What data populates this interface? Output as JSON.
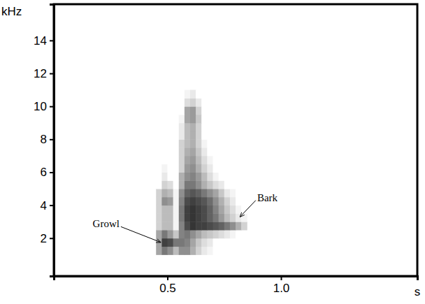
{
  "chart_data": {
    "type": "heatmap",
    "x_label": "s",
    "y_label": "kHz",
    "xlim": [
      0,
      1.6
    ],
    "xticks": [
      0.5,
      {
        "value": 1,
        "label": "1.0"
      }
    ],
    "ylim": [
      -0.3,
      16.2
    ],
    "yticks": [
      2,
      4,
      6,
      8,
      10,
      12,
      14
    ],
    "zlim": [
      0,
      1
    ],
    "x_bins": [
      0.45,
      0.475,
      0.5,
      0.525,
      0.55,
      0.575,
      0.6,
      0.625,
      0.65,
      0.675,
      0.7,
      0.725,
      0.75,
      0.775,
      0.8,
      0.825,
      0.85
    ],
    "y_bins": [
      1,
      1.5,
      2,
      2.5,
      3,
      3.5,
      4,
      4.5,
      5,
      5.5,
      6,
      6.5,
      7,
      7.5,
      8,
      8.5,
      9,
      9.5,
      10,
      10.5,
      11
    ],
    "values": [
      [
        0.4,
        0.6,
        0.5,
        0.3,
        0.5,
        0.5,
        0.35,
        0.2,
        0.1,
        0.05,
        0,
        0,
        0,
        0,
        0,
        0
      ],
      [
        0.4,
        0.85,
        0.8,
        0.6,
        0.6,
        0.55,
        0.4,
        0.25,
        0.15,
        0.1,
        0,
        0,
        0,
        0,
        0,
        0
      ],
      [
        0.4,
        0.6,
        0.45,
        0.25,
        0.55,
        0.6,
        0.5,
        0.4,
        0.3,
        0.25,
        0.2,
        0.15,
        0.1,
        0.05,
        0,
        0
      ],
      [
        0.2,
        0.3,
        0.3,
        0.05,
        0.55,
        0.8,
        0.9,
        0.85,
        0.85,
        0.8,
        0.75,
        0.7,
        0.6,
        0.5,
        0.35,
        0.2
      ],
      [
        0.2,
        0.3,
        0.3,
        0.05,
        0.6,
        0.85,
        0.9,
        0.85,
        0.8,
        0.7,
        0.6,
        0.45,
        0.3,
        0.2,
        0.1,
        0.05
      ],
      [
        0.2,
        0.3,
        0.3,
        0.05,
        0.6,
        0.85,
        0.9,
        0.85,
        0.8,
        0.7,
        0.55,
        0.4,
        0.25,
        0.15,
        0.05,
        0
      ],
      [
        0.2,
        0.5,
        0.45,
        0.05,
        0.55,
        0.8,
        0.85,
        0.8,
        0.75,
        0.65,
        0.5,
        0.35,
        0.2,
        0.1,
        0,
        0
      ],
      [
        0.2,
        0.35,
        0.3,
        0.05,
        0.5,
        0.7,
        0.75,
        0.7,
        0.6,
        0.5,
        0.4,
        0.25,
        0.1,
        0.05,
        0,
        0
      ],
      [
        0,
        0.2,
        0.15,
        0,
        0.35,
        0.6,
        0.6,
        0.5,
        0.35,
        0.25,
        0.15,
        0.1,
        0,
        0,
        0,
        0
      ],
      [
        0,
        0.1,
        0,
        0,
        0.35,
        0.5,
        0.55,
        0.45,
        0.3,
        0.15,
        0.05,
        0,
        0,
        0,
        0,
        0
      ],
      [
        0,
        0.05,
        0,
        0,
        0.2,
        0.45,
        0.5,
        0.35,
        0.2,
        0.1,
        0,
        0,
        0,
        0,
        0,
        0
      ],
      [
        0,
        0,
        0,
        0,
        0.2,
        0.4,
        0.45,
        0.3,
        0.15,
        0.05,
        0,
        0,
        0,
        0,
        0,
        0
      ],
      [
        0,
        0,
        0,
        0,
        0.2,
        0.35,
        0.4,
        0.25,
        0.1,
        0,
        0,
        0,
        0,
        0,
        0,
        0
      ],
      [
        0,
        0,
        0,
        0,
        0.2,
        0.3,
        0.35,
        0.2,
        0.05,
        0,
        0,
        0,
        0,
        0,
        0,
        0
      ],
      [
        0,
        0,
        0,
        0,
        0.1,
        0.3,
        0.35,
        0.2,
        0,
        0,
        0,
        0,
        0,
        0,
        0,
        0
      ],
      [
        0,
        0,
        0,
        0,
        0.1,
        0.3,
        0.35,
        0.2,
        0,
        0,
        0,
        0,
        0,
        0,
        0,
        0
      ],
      [
        0,
        0,
        0,
        0,
        0.05,
        0.4,
        0.45,
        0.25,
        0,
        0,
        0,
        0,
        0,
        0,
        0,
        0
      ],
      [
        0,
        0,
        0,
        0,
        0,
        0.4,
        0.45,
        0.2,
        0,
        0,
        0,
        0,
        0,
        0,
        0,
        0
      ],
      [
        0,
        0,
        0,
        0,
        0,
        0.15,
        0.2,
        0.1,
        0,
        0,
        0,
        0,
        0,
        0,
        0,
        0
      ],
      [
        0,
        0,
        0,
        0,
        0,
        0.05,
        0.1,
        0,
        0,
        0,
        0,
        0,
        0,
        0,
        0,
        0
      ]
    ],
    "annotations": [
      {
        "text": "Growl",
        "text_x": 0.23,
        "text_y": 2.8,
        "x": 0.47,
        "y": 1.75,
        "side": "left"
      },
      {
        "text": "Bark",
        "text_x": 0.94,
        "text_y": 4.4,
        "x": 0.82,
        "y": 3.3,
        "side": "right"
      }
    ]
  }
}
